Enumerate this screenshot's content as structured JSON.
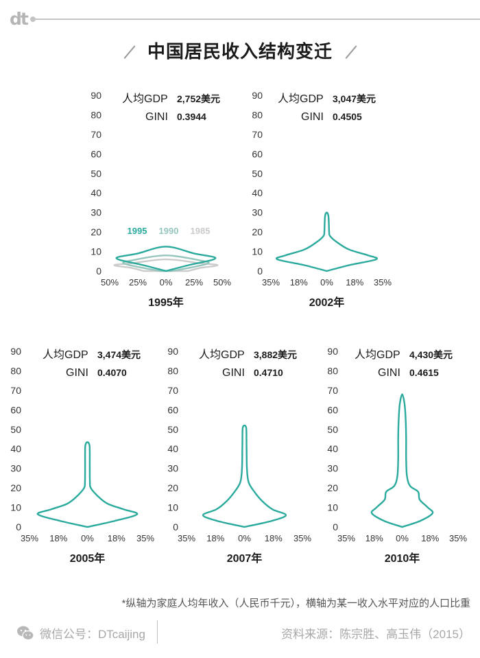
{
  "header": {
    "logo": "dt",
    "title": "中国居民收入结构变迁"
  },
  "colors": {
    "violin": "#2aaa9c",
    "series_1995": "#2aaa9c",
    "series_1990": "#96c5bd",
    "series_1985": "#cbcbcb",
    "axis_text": "#333333"
  },
  "chart_data": [
    {
      "type": "violin",
      "gdp_label": "人均GDP",
      "gdp_value": "2,752美元",
      "gini_label": "GINI",
      "gini_value": "0.3944",
      "xlabel": "1995年",
      "y_ticks": [
        "0",
        "10",
        "20",
        "30",
        "40",
        "50",
        "60",
        "70",
        "80",
        "90"
      ],
      "x_ticks": [
        "50%",
        "25%",
        "0%",
        "25%",
        "50%"
      ],
      "ylim": [
        0,
        90
      ],
      "xlim": [
        -0.5,
        0.5
      ],
      "legend": [
        "1995",
        "1990",
        "1985"
      ],
      "series": [
        {
          "name": "1985",
          "color": "#cbcbcb",
          "profile": [
            [
              0,
              0.2
            ],
            [
              1.5,
              0.3
            ],
            [
              3,
              0.46
            ],
            [
              4,
              0.3
            ],
            [
              6,
              0
            ]
          ]
        },
        {
          "name": "1990",
          "color": "#96c5bd",
          "profile": [
            [
              0,
              0.05
            ],
            [
              2,
              0.24
            ],
            [
              4,
              0.38
            ],
            [
              5.5,
              0.3
            ],
            [
              8,
              0
            ]
          ]
        },
        {
          "name": "1995",
          "color": "#2aaa9c",
          "profile": [
            [
              0,
              0
            ],
            [
              3,
              0.2
            ],
            [
              6.5,
              0.44
            ],
            [
              9,
              0.25
            ],
            [
              12.5,
              0
            ]
          ]
        }
      ]
    },
    {
      "type": "violin",
      "gdp_label": "人均GDP",
      "gdp_value": "3,047美元",
      "gini_label": "GINI",
      "gini_value": "0.4505",
      "xlabel": "2002年",
      "y_ticks": [
        "0",
        "10",
        "20",
        "30",
        "40",
        "50",
        "60",
        "70",
        "80",
        "90"
      ],
      "x_ticks": [
        "35%",
        "18%",
        "0%",
        "18%",
        "35%"
      ],
      "ylim": [
        0,
        90
      ],
      "xlim": [
        -0.35,
        0.35
      ],
      "series": [
        {
          "name": "2002",
          "color": "#2aaa9c",
          "profile": [
            [
              0,
              0
            ],
            [
              3,
              0.14
            ],
            [
              6,
              0.31
            ],
            [
              8,
              0.26
            ],
            [
              11,
              0.14
            ],
            [
              15,
              0.06
            ],
            [
              18,
              0.02
            ],
            [
              20,
              0.015
            ],
            [
              25,
              0.013
            ],
            [
              28.5,
              0.01
            ],
            [
              30,
              0
            ]
          ]
        }
      ]
    },
    {
      "type": "violin",
      "gdp_label": "人均GDP",
      "gdp_value": "3,474美元",
      "gini_label": "GINI",
      "gini_value": "0.4070",
      "xlabel": "2005年",
      "y_ticks": [
        "0",
        "10",
        "20",
        "30",
        "40",
        "50",
        "60",
        "70",
        "80",
        "90"
      ],
      "x_ticks": [
        "35%",
        "18%",
        "0%",
        "18%",
        "35%"
      ],
      "ylim": [
        0,
        90
      ],
      "xlim": [
        -0.35,
        0.35
      ],
      "series": [
        {
          "name": "2005",
          "color": "#2aaa9c",
          "profile": [
            [
              0,
              0
            ],
            [
              3,
              0.16
            ],
            [
              6.5,
              0.3
            ],
            [
              9,
              0.22
            ],
            [
              12,
              0.12
            ],
            [
              16,
              0.06
            ],
            [
              20,
              0.02
            ],
            [
              23,
              0.015
            ],
            [
              30,
              0.014
            ],
            [
              38,
              0.014
            ],
            [
              42,
              0.012
            ],
            [
              43.5,
              0
            ]
          ]
        }
      ]
    },
    {
      "type": "violin",
      "gdp_label": "人均GDP",
      "gdp_value": "3,882美元",
      "gini_label": "GINI",
      "gini_value": "0.4710",
      "xlabel": "2007年",
      "y_ticks": [
        "0",
        "10",
        "20",
        "30",
        "40",
        "50",
        "60",
        "70",
        "80",
        "90"
      ],
      "x_ticks": [
        "35%",
        "18%",
        "0%",
        "18%",
        "35%"
      ],
      "ylim": [
        0,
        90
      ],
      "xlim": [
        -0.35,
        0.35
      ],
      "series": [
        {
          "name": "2007",
          "color": "#2aaa9c",
          "profile": [
            [
              0,
              0
            ],
            [
              3,
              0.16
            ],
            [
              6,
              0.25
            ],
            [
              9,
              0.17
            ],
            [
              13,
              0.11
            ],
            [
              18,
              0.06
            ],
            [
              23,
              0.025
            ],
            [
              30,
              0.015
            ],
            [
              40,
              0.013
            ],
            [
              48,
              0.012
            ],
            [
              51,
              0.01
            ],
            [
              52,
              0
            ]
          ]
        }
      ]
    },
    {
      "type": "violin",
      "gdp_label": "人均GDP",
      "gdp_value": "4,430美元",
      "gini_label": "GINI",
      "gini_value": "0.4615",
      "xlabel": "2010年",
      "y_ticks": [
        "0",
        "10",
        "20",
        "30",
        "40",
        "50",
        "60",
        "70",
        "80",
        "90"
      ],
      "x_ticks": [
        "35%",
        "18%",
        "0%",
        "18%",
        "35%"
      ],
      "ylim": [
        0,
        90
      ],
      "xlim": [
        -0.35,
        0.35
      ],
      "series": [
        {
          "name": "2010",
          "color": "#2aaa9c",
          "profile": [
            [
              0,
              0
            ],
            [
              3,
              0.11
            ],
            [
              7,
              0.19
            ],
            [
              10,
              0.16
            ],
            [
              14,
              0.11
            ],
            [
              18,
              0.1
            ],
            [
              21,
              0.05
            ],
            [
              26,
              0.03
            ],
            [
              35,
              0.025
            ],
            [
              45,
              0.025
            ],
            [
              55,
              0.022
            ],
            [
              63,
              0.015
            ],
            [
              68,
              0
            ]
          ]
        }
      ]
    }
  ],
  "footnote": "*纵轴为家庭人均年收入（人民币千元），横轴为某一收入水平对应的人口比重",
  "footer": {
    "wechat_text": "微信公号：DTcaijing",
    "source": "资料来源：陈宗胜、高玉伟（2015）"
  }
}
